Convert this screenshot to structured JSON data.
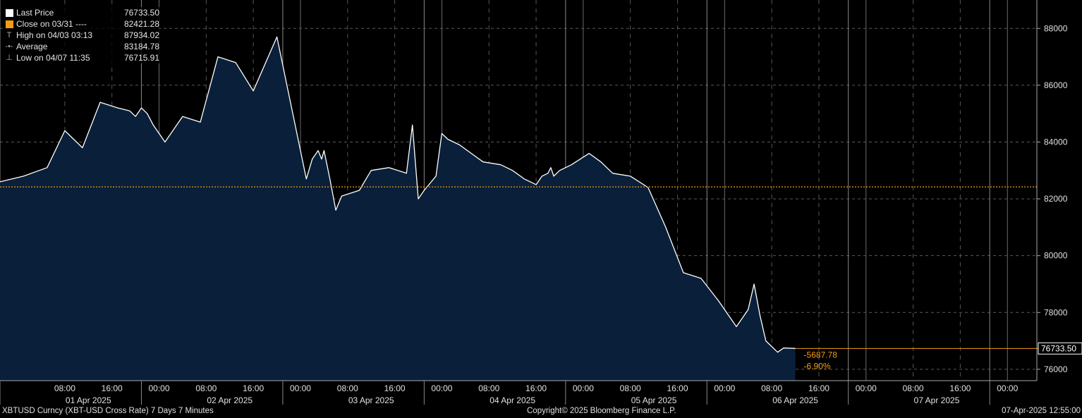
{
  "legend": [
    {
      "label": "Last Price",
      "value": "76733.50",
      "icon": "white-square",
      "color": "#ffffff"
    },
    {
      "label": "Close on 03/31 ----",
      "value": "82421.28",
      "icon": "orange-square",
      "color": "#f39c12"
    },
    {
      "label": "High on 04/03 03:13",
      "value": "87934.02",
      "icon": "high-marker"
    },
    {
      "label": "Average",
      "value": "83184.78",
      "icon": "average-marker"
    },
    {
      "label": "Low on 04/07 11:35",
      "value": "76715.91",
      "icon": "low-marker"
    }
  ],
  "footer": {
    "left": "XBTUSD Curncy (XBT-USD Cross Rate) 7 Days 7 Minutes",
    "center": "Copyright© 2025 Bloomberg Finance L.P.",
    "right": "07-Apr-2025 12:55:00"
  },
  "colors": {
    "line": "#ffffff",
    "area": "#0a1f3a",
    "reference": "#f39c12",
    "annotation": "#f39c12",
    "background": "#000000"
  },
  "chart_data": {
    "type": "area",
    "x_unit": "hours since 31 Mar 2025 21:00",
    "x": [
      0,
      4,
      8,
      11,
      14,
      17,
      20,
      22,
      23,
      24,
      25,
      26,
      28,
      31,
      34,
      37,
      40,
      43,
      47,
      50,
      52,
      53,
      54,
      54.6,
      55,
      56,
      57,
      58,
      61,
      63,
      66,
      69,
      70,
      71,
      72,
      74,
      75,
      76,
      78,
      80,
      82,
      85,
      87,
      89,
      91,
      92,
      93,
      93.5,
      94,
      95,
      97,
      100,
      102,
      104,
      107,
      110,
      113,
      116,
      119,
      122,
      125,
      127,
      128,
      129,
      130,
      132,
      133,
      135,
      136,
      137,
      139,
      140,
      141,
      142,
      145,
      149,
      150,
      152
    ],
    "y": [
      82600,
      82800,
      83100,
      84400,
      83800,
      85400,
      85200,
      85100,
      84900,
      85200,
      85000,
      84600,
      84000,
      84900,
      84700,
      87000,
      86800,
      85800,
      87700,
      84700,
      82700,
      83400,
      83700,
      83400,
      83700,
      82700,
      81600,
      82100,
      82300,
      83000,
      83100,
      82900,
      84600,
      82000,
      82300,
      82800,
      84300,
      84100,
      83900,
      83600,
      83300,
      83200,
      83000,
      82700,
      82500,
      82800,
      82900,
      83100,
      82800,
      83000,
      83200,
      83600,
      83300,
      82900,
      82800,
      82400,
      81000,
      79400,
      79200,
      78400,
      77500,
      78100,
      79000,
      77900,
      77000,
      76600,
      76750,
      76733.5,
      null,
      null,
      null,
      null,
      null,
      null,
      null,
      null,
      null,
      null
    ],
    "close_reference": 82421.28,
    "high": {
      "label": "High on 04/03 03:13",
      "value": 87934.02
    },
    "low": {
      "label": "Low on 04/07 11:35",
      "value": 76715.91
    },
    "average": 83184.78,
    "last": 76733.5,
    "last_label": "76733.50",
    "change_label": "-5687.78",
    "change_pct_label": "-6.90%",
    "ylim": [
      75600,
      89000
    ],
    "yticks": [
      76000,
      78000,
      80000,
      82000,
      84000,
      86000,
      88000
    ],
    "ytick_labels": [
      "76000",
      "78000",
      "80000",
      "82000",
      "84000",
      "86000",
      "88000"
    ],
    "xticks": [
      {
        "t": 11,
        "label": "08:00"
      },
      {
        "t": 19,
        "label": "16:00"
      },
      {
        "t": 27,
        "label": "00:00"
      },
      {
        "t": 35,
        "label": "08:00"
      },
      {
        "t": 43,
        "label": "16:00"
      },
      {
        "t": 51,
        "label": "00:00"
      },
      {
        "t": 59,
        "label": "08:00"
      },
      {
        "t": 67,
        "label": "16:00"
      },
      {
        "t": 75,
        "label": "00:00"
      },
      {
        "t": 83,
        "label": "08:00"
      },
      {
        "t": 91,
        "label": "16:00"
      },
      {
        "t": 99,
        "label": "00:00"
      },
      {
        "t": 107,
        "label": "08:00"
      },
      {
        "t": 115,
        "label": "16:00"
      },
      {
        "t": 123,
        "label": "00:00"
      },
      {
        "t": 131,
        "label": "08:00"
      },
      {
        "t": 139,
        "label": "16:00"
      },
      {
        "t": 147,
        "label": "00:00"
      },
      {
        "t": 155,
        "label": "08:00"
      },
      {
        "t": 163,
        "label": "16:00"
      },
      {
        "t": 171,
        "label": "00:00"
      }
    ],
    "day_labels": [
      {
        "t": 15,
        "label": "01 Apr 2025"
      },
      {
        "t": 39,
        "label": "02 Apr 2025"
      },
      {
        "t": 63,
        "label": "03 Apr 2025"
      },
      {
        "t": 87,
        "label": "04 Apr 2025"
      },
      {
        "t": 111,
        "label": "05 Apr 2025"
      },
      {
        "t": 135,
        "label": "06 Apr 2025"
      },
      {
        "t": 159,
        "label": "07 Apr 2025"
      }
    ],
    "xlim": [
      0,
      176
    ],
    "grid": true
  }
}
